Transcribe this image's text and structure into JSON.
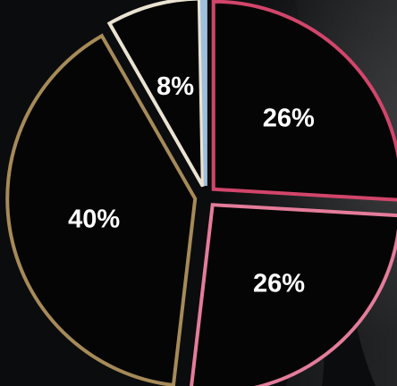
{
  "chart_data": {
    "type": "pie",
    "slices": [
      {
        "label": "26%",
        "value": 26,
        "color": "#d2456b"
      },
      {
        "label": "26%",
        "value": 26,
        "color": "#e47c9a"
      },
      {
        "label": "40%",
        "value": 40,
        "color": "#a68a58"
      },
      {
        "label": "8%",
        "value": 8,
        "color": "#eae3d2"
      },
      {
        "label": "",
        "value": 0.3,
        "color": "#9fc0dd"
      }
    ]
  }
}
